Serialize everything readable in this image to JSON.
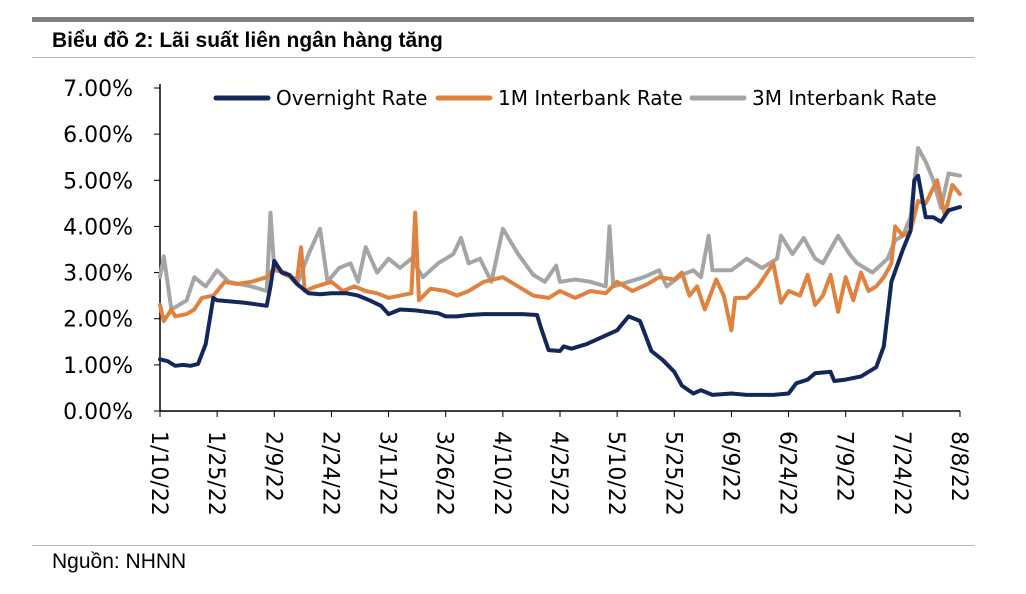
{
  "header": {
    "title": "Biểu đồ 2:  Lãi suất liên ngân hàng tăng"
  },
  "footer": {
    "source": "Nguồn: NHNN"
  },
  "colors": {
    "overnight": "#14275a",
    "m1": "#e0823f",
    "m3": "#a5a5a5",
    "axis": "#000000",
    "rule": "#7f7f7f"
  },
  "chart_data": {
    "type": "line",
    "title": "",
    "xlabel": "",
    "ylabel": "",
    "ylim": [
      0,
      7
    ],
    "y_ticks": [
      "0.00%",
      "1.00%",
      "2.00%",
      "3.00%",
      "4.00%",
      "5.00%",
      "6.00%",
      "7.00%"
    ],
    "x_tick_labels": [
      "1/10/22",
      "1/25/22",
      "2/9/22",
      "2/24/22",
      "3/11/22",
      "3/26/22",
      "4/10/22",
      "4/25/22",
      "5/10/22",
      "5/25/22",
      "6/9/22",
      "6/24/22",
      "7/9/22",
      "7/24/22",
      "8/8/22"
    ],
    "grid": false,
    "legend_position": "top",
    "series": [
      {
        "name": "Overnight Rate",
        "points": [
          [
            "1/10/22",
            1.12
          ],
          [
            "1/12/22",
            1.08
          ],
          [
            "1/14/22",
            0.98
          ],
          [
            "1/16/22",
            1.0
          ],
          [
            "1/18/22",
            0.98
          ],
          [
            "1/20/22",
            1.02
          ],
          [
            "1/22/22",
            1.45
          ],
          [
            "1/24/22",
            2.45
          ],
          [
            "1/25/22",
            2.4
          ],
          [
            "2/1/22",
            2.35
          ],
          [
            "2/7/22",
            2.28
          ],
          [
            "2/8/22",
            2.7
          ],
          [
            "2/9/22",
            3.25
          ],
          [
            "2/11/22",
            3.0
          ],
          [
            "2/13/22",
            2.95
          ],
          [
            "2/15/22",
            2.75
          ],
          [
            "2/18/22",
            2.55
          ],
          [
            "2/21/22",
            2.53
          ],
          [
            "2/24/22",
            2.55
          ],
          [
            "2/28/22",
            2.55
          ],
          [
            "3/3/22",
            2.5
          ],
          [
            "3/6/22",
            2.4
          ],
          [
            "3/9/22",
            2.28
          ],
          [
            "3/11/22",
            2.1
          ],
          [
            "3/14/22",
            2.2
          ],
          [
            "3/18/22",
            2.18
          ],
          [
            "3/21/22",
            2.15
          ],
          [
            "3/24/22",
            2.12
          ],
          [
            "3/26/22",
            2.05
          ],
          [
            "3/29/22",
            2.05
          ],
          [
            "4/1/22",
            2.08
          ],
          [
            "4/5/22",
            2.1
          ],
          [
            "4/10/22",
            2.1
          ],
          [
            "4/15/22",
            2.1
          ],
          [
            "4/19/22",
            2.08
          ],
          [
            "4/20/22",
            1.8
          ],
          [
            "4/22/22",
            1.32
          ],
          [
            "4/25/22",
            1.3
          ],
          [
            "4/26/22",
            1.4
          ],
          [
            "4/28/22",
            1.35
          ],
          [
            "5/2/22",
            1.45
          ],
          [
            "5/6/22",
            1.6
          ],
          [
            "5/10/22",
            1.75
          ],
          [
            "5/13/22",
            2.05
          ],
          [
            "5/16/22",
            1.95
          ],
          [
            "5/19/22",
            1.3
          ],
          [
            "5/22/22",
            1.1
          ],
          [
            "5/25/22",
            0.85
          ],
          [
            "5/27/22",
            0.55
          ],
          [
            "5/30/22",
            0.38
          ],
          [
            "6/1/22",
            0.45
          ],
          [
            "6/4/22",
            0.35
          ],
          [
            "6/9/22",
            0.38
          ],
          [
            "6/13/22",
            0.35
          ],
          [
            "6/20/22",
            0.35
          ],
          [
            "6/24/22",
            0.38
          ],
          [
            "6/26/22",
            0.6
          ],
          [
            "6/29/22",
            0.68
          ],
          [
            "7/1/22",
            0.82
          ],
          [
            "7/5/22",
            0.85
          ],
          [
            "7/6/22",
            0.65
          ],
          [
            "7/9/22",
            0.68
          ],
          [
            "7/13/22",
            0.75
          ],
          [
            "7/17/22",
            0.95
          ],
          [
            "7/19/22",
            1.4
          ],
          [
            "7/21/22",
            2.8
          ],
          [
            "7/24/22",
            3.5
          ],
          [
            "7/26/22",
            3.9
          ],
          [
            "7/27/22",
            5.0
          ],
          [
            "7/28/22",
            5.1
          ],
          [
            "7/30/22",
            4.2
          ],
          [
            "8/1/22",
            4.2
          ],
          [
            "8/3/22",
            4.1
          ],
          [
            "8/5/22",
            4.35
          ],
          [
            "8/8/22",
            4.42
          ]
        ]
      },
      {
        "name": "1M Interbank Rate",
        "points": [
          [
            "1/10/22",
            2.3
          ],
          [
            "1/11/22",
            1.95
          ],
          [
            "1/13/22",
            2.2
          ],
          [
            "1/14/22",
            2.05
          ],
          [
            "1/17/22",
            2.1
          ],
          [
            "1/19/22",
            2.2
          ],
          [
            "1/21/22",
            2.45
          ],
          [
            "1/24/22",
            2.5
          ],
          [
            "1/27/22",
            2.8
          ],
          [
            "1/30/22",
            2.75
          ],
          [
            "2/3/22",
            2.8
          ],
          [
            "2/7/22",
            2.9
          ],
          [
            "2/9/22",
            3.1
          ],
          [
            "2/12/22",
            2.95
          ],
          [
            "2/15/22",
            2.85
          ],
          [
            "2/16/22",
            3.55
          ],
          [
            "2/17/22",
            2.6
          ],
          [
            "2/20/22",
            2.7
          ],
          [
            "2/24/22",
            2.8
          ],
          [
            "2/27/22",
            2.6
          ],
          [
            "3/2/22",
            2.7
          ],
          [
            "3/5/22",
            2.6
          ],
          [
            "3/8/22",
            2.55
          ],
          [
            "3/11/22",
            2.45
          ],
          [
            "3/14/22",
            2.5
          ],
          [
            "3/17/22",
            2.55
          ],
          [
            "3/18/22",
            4.3
          ],
          [
            "3/19/22",
            2.4
          ],
          [
            "3/22/22",
            2.65
          ],
          [
            "3/26/22",
            2.6
          ],
          [
            "3/29/22",
            2.5
          ],
          [
            "4/1/22",
            2.6
          ],
          [
            "4/5/22",
            2.8
          ],
          [
            "4/10/22",
            2.9
          ],
          [
            "4/14/22",
            2.7
          ],
          [
            "4/18/22",
            2.5
          ],
          [
            "4/22/22",
            2.45
          ],
          [
            "4/25/22",
            2.6
          ],
          [
            "4/29/22",
            2.45
          ],
          [
            "5/3/22",
            2.6
          ],
          [
            "5/7/22",
            2.55
          ],
          [
            "5/10/22",
            2.8
          ],
          [
            "5/14/22",
            2.6
          ],
          [
            "5/18/22",
            2.75
          ],
          [
            "5/21/22",
            2.9
          ],
          [
            "5/25/22",
            2.85
          ],
          [
            "5/27/22",
            3.0
          ],
          [
            "5/29/22",
            2.5
          ],
          [
            "5/31/22",
            2.7
          ],
          [
            "6/2/22",
            2.2
          ],
          [
            "6/5/22",
            2.85
          ],
          [
            "6/7/22",
            2.5
          ],
          [
            "6/9/22",
            1.75
          ],
          [
            "6/10/22",
            2.45
          ],
          [
            "6/13/22",
            2.45
          ],
          [
            "6/16/22",
            2.7
          ],
          [
            "6/20/22",
            3.2
          ],
          [
            "6/22/22",
            2.35
          ],
          [
            "6/24/22",
            2.6
          ],
          [
            "6/27/22",
            2.5
          ],
          [
            "6/29/22",
            2.95
          ],
          [
            "7/1/22",
            2.3
          ],
          [
            "7/3/22",
            2.5
          ],
          [
            "7/5/22",
            2.95
          ],
          [
            "7/7/22",
            2.15
          ],
          [
            "7/9/22",
            2.9
          ],
          [
            "7/11/22",
            2.4
          ],
          [
            "7/13/22",
            3.0
          ],
          [
            "7/15/22",
            2.6
          ],
          [
            "7/17/22",
            2.7
          ],
          [
            "7/19/22",
            2.9
          ],
          [
            "7/21/22",
            3.2
          ],
          [
            "7/22/22",
            4.0
          ],
          [
            "7/24/22",
            3.8
          ],
          [
            "7/26/22",
            3.9
          ],
          [
            "7/28/22",
            4.55
          ],
          [
            "7/30/22",
            4.5
          ],
          [
            "8/2/22",
            5.0
          ],
          [
            "8/4/22",
            4.25
          ],
          [
            "8/6/22",
            4.9
          ],
          [
            "8/8/22",
            4.7
          ]
        ]
      },
      {
        "name": "3M Interbank Rate",
        "points": [
          [
            "1/10/22",
            2.9
          ],
          [
            "1/11/22",
            3.35
          ],
          [
            "1/13/22",
            2.2
          ],
          [
            "1/15/22",
            2.3
          ],
          [
            "1/17/22",
            2.4
          ],
          [
            "1/19/22",
            2.9
          ],
          [
            "1/22/22",
            2.7
          ],
          [
            "1/25/22",
            3.05
          ],
          [
            "1/28/22",
            2.8
          ],
          [
            "2/3/22",
            2.7
          ],
          [
            "2/7/22",
            2.6
          ],
          [
            "2/8/22",
            4.3
          ],
          [
            "2/9/22",
            3.05
          ],
          [
            "2/12/22",
            3.0
          ],
          [
            "2/15/22",
            2.75
          ],
          [
            "2/18/22",
            3.4
          ],
          [
            "2/21/22",
            3.95
          ],
          [
            "2/23/22",
            2.8
          ],
          [
            "2/26/22",
            3.1
          ],
          [
            "3/1/22",
            3.2
          ],
          [
            "3/3/22",
            2.8
          ],
          [
            "3/5/22",
            3.55
          ],
          [
            "3/8/22",
            3.0
          ],
          [
            "3/11/22",
            3.3
          ],
          [
            "3/14/22",
            3.1
          ],
          [
            "3/17/22",
            3.3
          ],
          [
            "3/20/22",
            2.9
          ],
          [
            "3/24/22",
            3.2
          ],
          [
            "3/28/22",
            3.4
          ],
          [
            "3/30/22",
            3.75
          ],
          [
            "4/1/22",
            3.2
          ],
          [
            "4/4/22",
            3.3
          ],
          [
            "4/7/22",
            2.8
          ],
          [
            "4/10/22",
            3.95
          ],
          [
            "4/14/22",
            3.4
          ],
          [
            "4/18/22",
            2.95
          ],
          [
            "4/21/22",
            2.8
          ],
          [
            "4/24/22",
            3.15
          ],
          [
            "4/25/22",
            2.8
          ],
          [
            "4/29/22",
            2.85
          ],
          [
            "5/3/22",
            2.8
          ],
          [
            "5/7/22",
            2.7
          ],
          [
            "5/8/22",
            4.0
          ],
          [
            "5/9/22",
            2.7
          ],
          [
            "5/13/22",
            2.8
          ],
          [
            "5/17/22",
            2.9
          ],
          [
            "5/21/22",
            3.05
          ],
          [
            "5/23/22",
            2.7
          ],
          [
            "5/27/22",
            2.95
          ],
          [
            "5/30/22",
            3.05
          ],
          [
            "6/1/22",
            2.9
          ],
          [
            "6/3/22",
            3.8
          ],
          [
            "6/4/22",
            3.05
          ],
          [
            "6/9/22",
            3.05
          ],
          [
            "6/13/22",
            3.3
          ],
          [
            "6/17/22",
            3.1
          ],
          [
            "6/21/22",
            3.3
          ],
          [
            "6/22/22",
            3.8
          ],
          [
            "6/25/22",
            3.4
          ],
          [
            "6/28/22",
            3.75
          ],
          [
            "7/1/22",
            3.3
          ],
          [
            "7/3/22",
            3.2
          ],
          [
            "7/5/22",
            3.5
          ],
          [
            "7/7/22",
            3.8
          ],
          [
            "7/10/22",
            3.4
          ],
          [
            "7/12/22",
            3.2
          ],
          [
            "7/16/22",
            3.0
          ],
          [
            "7/20/22",
            3.3
          ],
          [
            "7/22/22",
            3.7
          ],
          [
            "7/24/22",
            3.8
          ],
          [
            "7/26/22",
            4.2
          ],
          [
            "7/28/22",
            5.7
          ],
          [
            "7/30/22",
            5.4
          ],
          [
            "8/1/22",
            5.0
          ],
          [
            "8/3/22",
            4.4
          ],
          [
            "8/5/22",
            5.15
          ],
          [
            "8/8/22",
            5.1
          ]
        ]
      }
    ]
  }
}
